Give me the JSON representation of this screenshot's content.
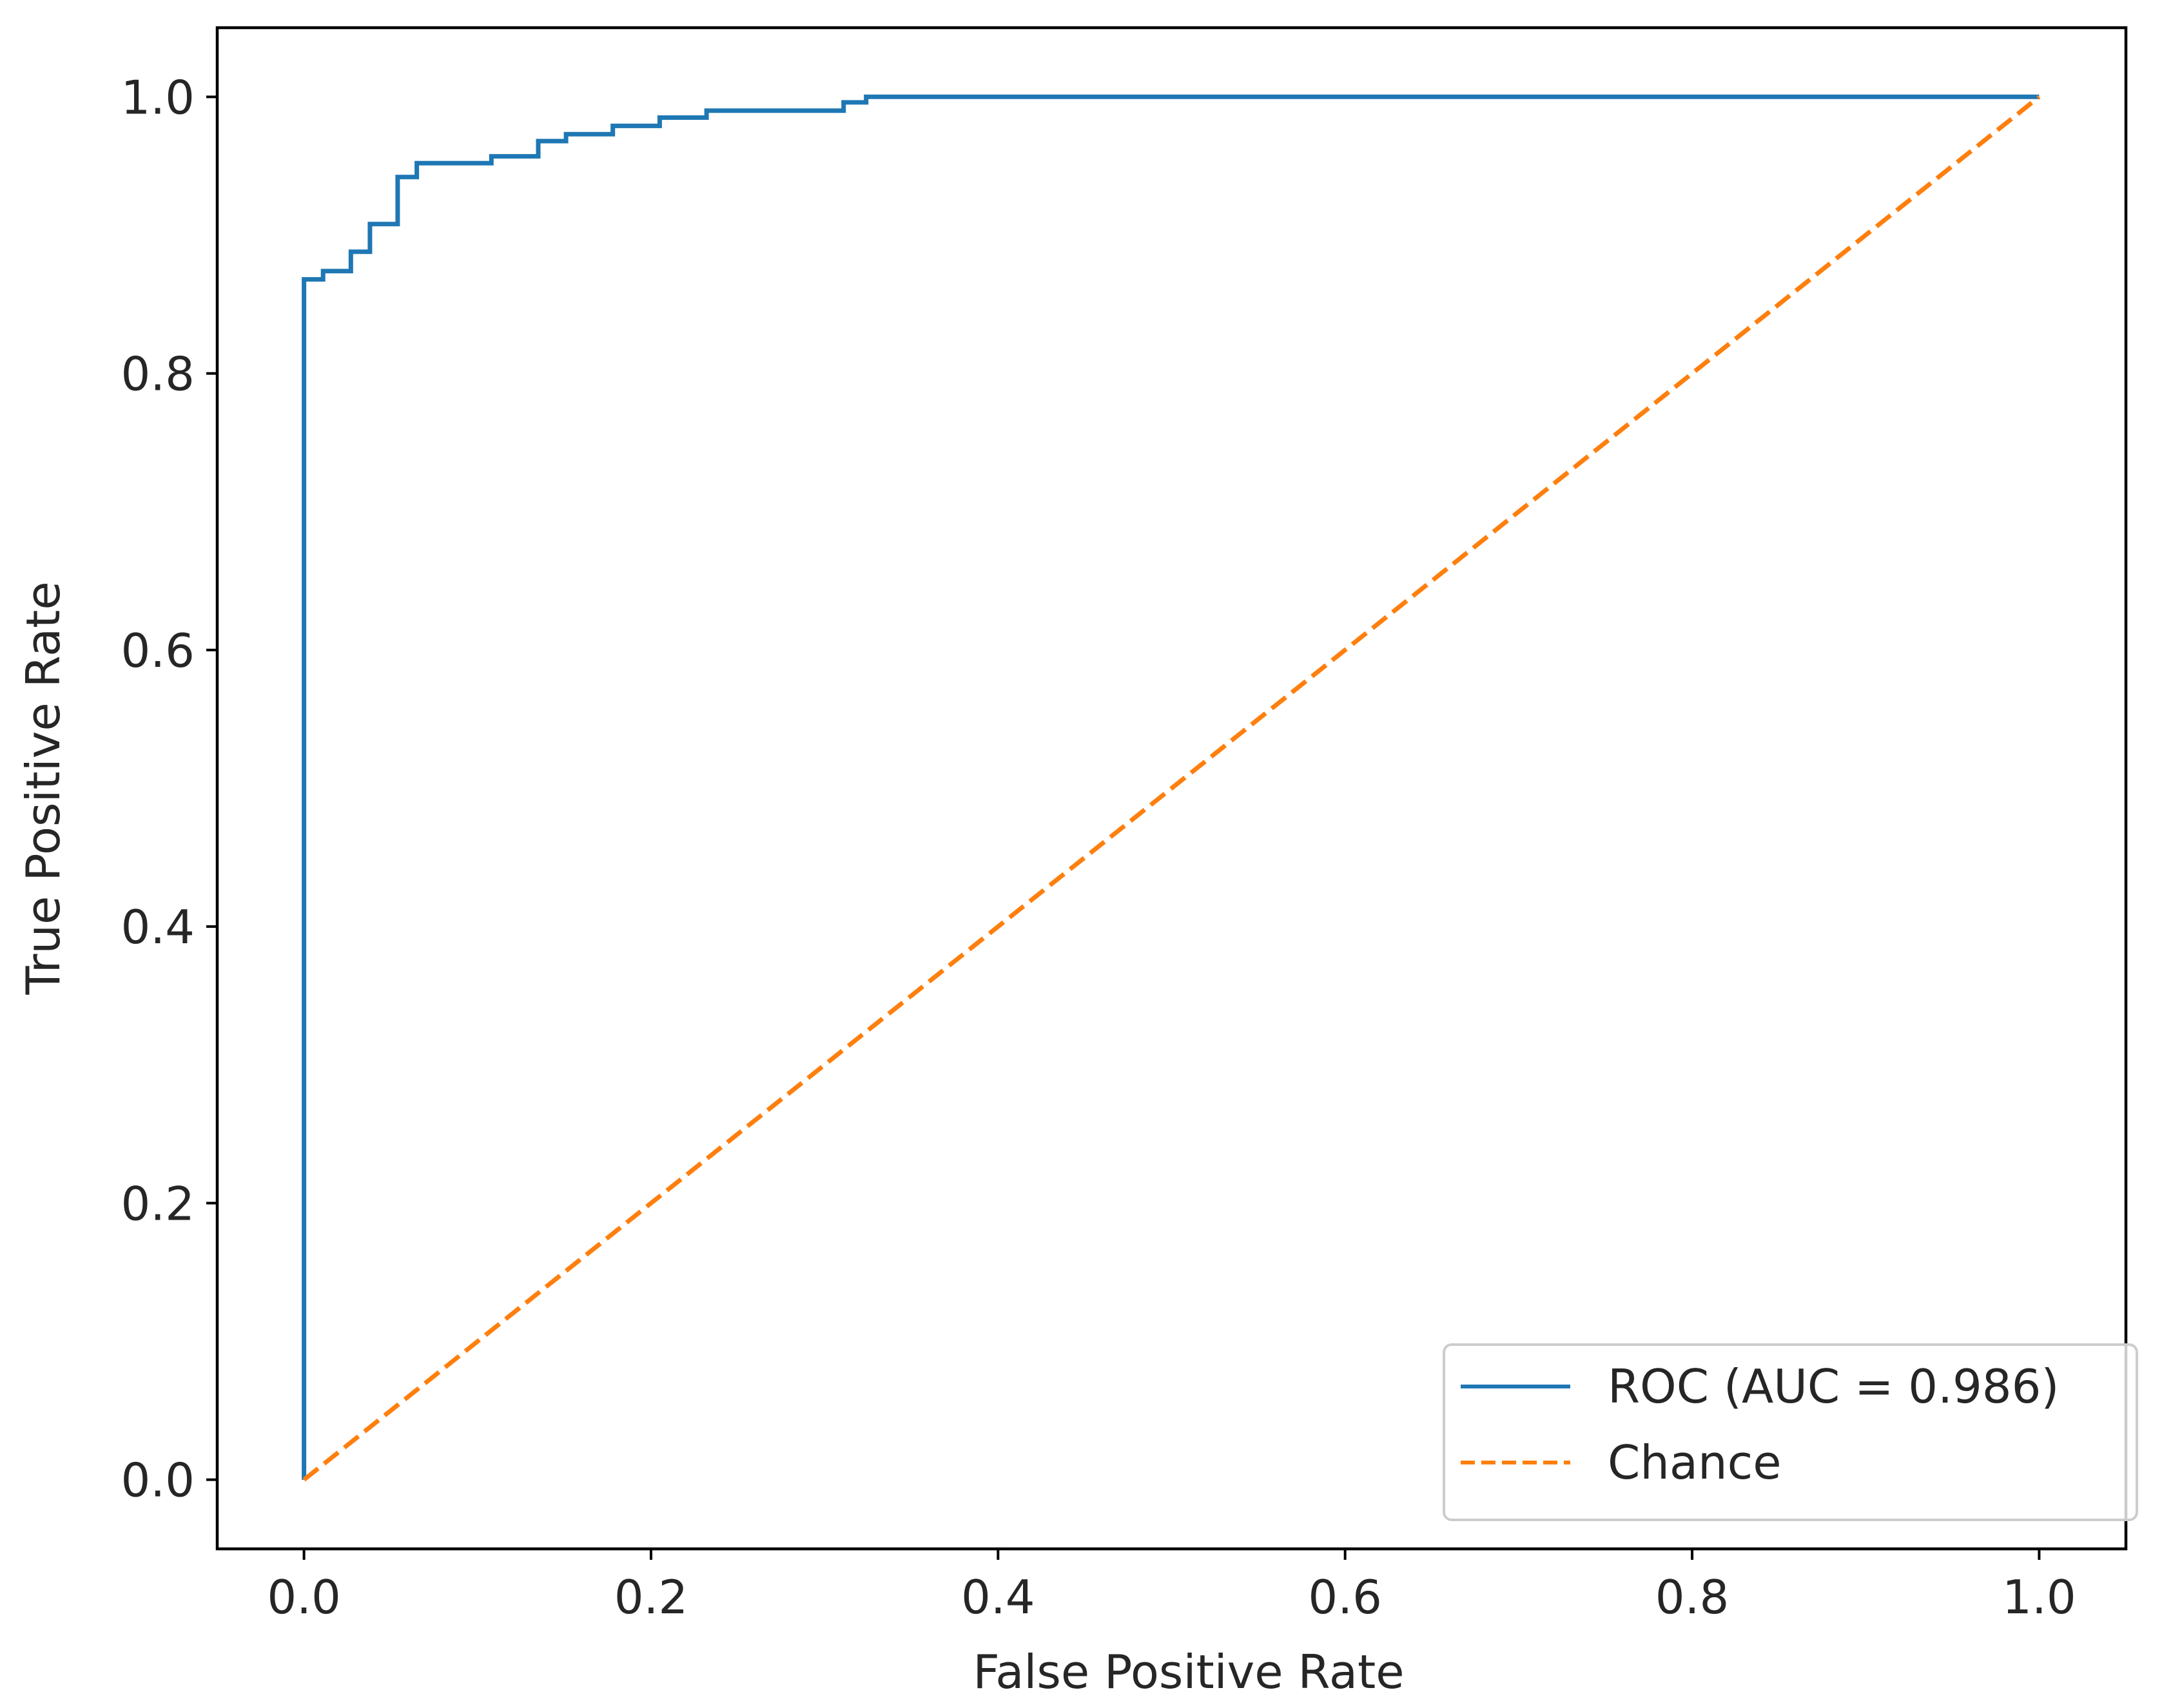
{
  "chart_data": {
    "type": "line",
    "title": "",
    "xlabel": "False Positive Rate",
    "ylabel": "True Positive Rate",
    "xlim": [
      -0.05,
      1.05
    ],
    "ylim": [
      -0.05,
      1.05
    ],
    "grid": false,
    "x_ticks": [
      0.0,
      0.2,
      0.4,
      0.6,
      0.8,
      1.0
    ],
    "x_tick_labels": [
      "0.0",
      "0.2",
      "0.4",
      "0.6",
      "0.8",
      "1.0"
    ],
    "y_ticks": [
      0.0,
      0.2,
      0.4,
      0.6,
      0.8,
      1.0
    ],
    "y_tick_labels": [
      "0.0",
      "0.2",
      "0.4",
      "0.6",
      "0.8",
      "1.0"
    ],
    "legend_position": "lower-right",
    "series": [
      {
        "name": "ROC (AUC = 0.986)",
        "color": "#1f77b4",
        "style": "solid",
        "step": true,
        "x": [
          0.0,
          0.0,
          0.011,
          0.011,
          0.027,
          0.027,
          0.038,
          0.038,
          0.054,
          0.054,
          0.065,
          0.065,
          0.108,
          0.108,
          0.135,
          0.135,
          0.151,
          0.151,
          0.178,
          0.178,
          0.205,
          0.205,
          0.232,
          0.232,
          0.311,
          0.311,
          0.324,
          0.324,
          1.0
        ],
        "y": [
          0.0,
          0.868,
          0.868,
          0.874,
          0.874,
          0.888,
          0.888,
          0.908,
          0.908,
          0.942,
          0.942,
          0.952,
          0.952,
          0.957,
          0.957,
          0.968,
          0.968,
          0.973,
          0.973,
          0.979,
          0.979,
          0.985,
          0.985,
          0.99,
          0.99,
          0.996,
          0.996,
          1.0,
          1.0
        ]
      },
      {
        "name": "Chance",
        "color": "#ff7f0e",
        "style": "dashed",
        "x": [
          0.0,
          1.0
        ],
        "y": [
          0.0,
          1.0
        ]
      }
    ]
  }
}
